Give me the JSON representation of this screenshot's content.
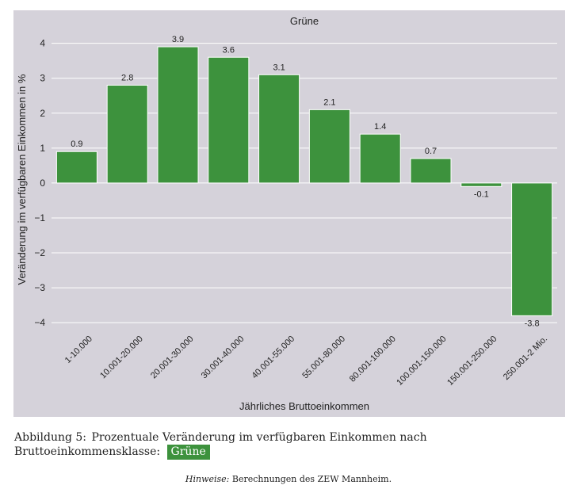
{
  "chart_data": {
    "type": "bar",
    "title": "Grüne",
    "xlabel": "Jährliches Bruttoeinkommen",
    "ylabel": "Veränderung im verfügbaren Einkommen in %",
    "categories": [
      "1-10.000",
      "10.001-20.000",
      "20.001-30.000",
      "30.001-40.000",
      "40.001-55.000",
      "55.001-80.000",
      "80.001-100.000",
      "100.001-150.000",
      "150.001-250.000",
      "250.001-2 Mio."
    ],
    "values": [
      0.9,
      2.8,
      3.9,
      3.6,
      3.1,
      2.1,
      1.4,
      0.7,
      -0.1,
      -3.8
    ],
    "value_labels": [
      "0.9",
      "2.8",
      "3.9",
      "3.6",
      "3.1",
      "2.1",
      "1.4",
      "0.7",
      "-0.1",
      "-3.8"
    ],
    "ylim": [
      -4.2,
      4.4
    ],
    "yticks": [
      -4,
      -3,
      -2,
      -1,
      0,
      1,
      2,
      3,
      4
    ],
    "ytick_labels": [
      "−4",
      "−3",
      "−2",
      "−1",
      "0",
      "1",
      "2",
      "3",
      "4"
    ],
    "grid": true,
    "colors": {
      "bar": "#3d923d",
      "background": "#d5d2da",
      "grid": "#ffffff",
      "text": "#222222"
    }
  },
  "caption": {
    "label": "Abbildung 5:",
    "text": "Prozentuale Veränderung im verfügbaren Einkommen nach Bruttoeinkommensklasse:",
    "tag": "Grüne",
    "tag_color": "#3d923d"
  },
  "note": {
    "label": "Hinweise:",
    "text": "Berechnungen des ZEW Mannheim."
  }
}
